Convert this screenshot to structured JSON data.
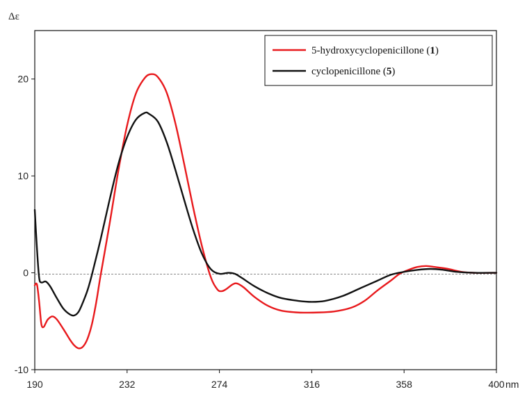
{
  "chart_data": {
    "type": "line",
    "ylabel": "Δε",
    "xunit": "nm",
    "xlim": [
      190,
      400
    ],
    "ylim": [
      -10,
      25
    ],
    "x_ticks": [
      190,
      232,
      274,
      316,
      358,
      400
    ],
    "x_tick_labels": [
      "190",
      "232",
      "274",
      "316",
      "358",
      "400"
    ],
    "y_ticks": [
      -10,
      0,
      10,
      20
    ],
    "y_tick_labels": [
      "-10",
      "0",
      "10",
      "20"
    ],
    "zero_line": true,
    "legend_position": "top-right",
    "series": [
      {
        "name": "5-hydroxycyclopenicillone (1)",
        "name_parts": [
          "5-hydroxycyclopenicillone (",
          "1",
          ")"
        ],
        "color": "#e8191c",
        "points": [
          [
            190,
            -1.3
          ],
          [
            191,
            -1.2
          ],
          [
            192,
            -3.0
          ],
          [
            193,
            -5.3
          ],
          [
            194,
            -5.6
          ],
          [
            195,
            -5.2
          ],
          [
            196,
            -4.8
          ],
          [
            198,
            -4.5
          ],
          [
            200,
            -4.8
          ],
          [
            203,
            -5.8
          ],
          [
            206,
            -6.9
          ],
          [
            208,
            -7.5
          ],
          [
            210,
            -7.8
          ],
          [
            212,
            -7.6
          ],
          [
            214,
            -6.8
          ],
          [
            216,
            -5.3
          ],
          [
            218,
            -3.0
          ],
          [
            220,
            -0.2
          ],
          [
            224,
            5.0
          ],
          [
            228,
            10.5
          ],
          [
            232,
            15.2
          ],
          [
            236,
            18.5
          ],
          [
            240,
            20.1
          ],
          [
            243,
            20.5
          ],
          [
            246,
            20.2
          ],
          [
            250,
            18.6
          ],
          [
            254,
            15.4
          ],
          [
            258,
            11.2
          ],
          [
            262,
            6.8
          ],
          [
            266,
            2.8
          ],
          [
            270,
            -0.4
          ],
          [
            273,
            -1.7
          ],
          [
            275,
            -1.9
          ],
          [
            277,
            -1.7
          ],
          [
            280,
            -1.2
          ],
          [
            282,
            -1.1
          ],
          [
            285,
            -1.5
          ],
          [
            290,
            -2.5
          ],
          [
            296,
            -3.4
          ],
          [
            302,
            -3.9
          ],
          [
            310,
            -4.1
          ],
          [
            318,
            -4.1
          ],
          [
            326,
            -4.0
          ],
          [
            334,
            -3.6
          ],
          [
            340,
            -2.9
          ],
          [
            346,
            -1.8
          ],
          [
            352,
            -0.8
          ],
          [
            356,
            -0.1
          ],
          [
            360,
            0.3
          ],
          [
            364,
            0.6
          ],
          [
            368,
            0.7
          ],
          [
            372,
            0.6
          ],
          [
            378,
            0.4
          ],
          [
            384,
            0.1
          ],
          [
            390,
            0.0
          ],
          [
            400,
            0.0
          ]
        ]
      },
      {
        "name": "cyclopenicillone (5)",
        "name_parts": [
          "cyclopenicillone (",
          "5",
          ")"
        ],
        "color": "#111111",
        "points": [
          [
            190,
            6.5
          ],
          [
            191,
            2.5
          ],
          [
            192,
            -0.5
          ],
          [
            193,
            -1.0
          ],
          [
            195,
            -0.9
          ],
          [
            197,
            -1.4
          ],
          [
            200,
            -2.6
          ],
          [
            203,
            -3.7
          ],
          [
            206,
            -4.3
          ],
          [
            208,
            -4.4
          ],
          [
            210,
            -4.0
          ],
          [
            212,
            -3.0
          ],
          [
            214,
            -1.8
          ],
          [
            216,
            -0.2
          ],
          [
            220,
            3.5
          ],
          [
            224,
            7.5
          ],
          [
            228,
            11.2
          ],
          [
            232,
            14.0
          ],
          [
            236,
            15.8
          ],
          [
            240,
            16.5
          ],
          [
            242,
            16.4
          ],
          [
            246,
            15.6
          ],
          [
            250,
            13.5
          ],
          [
            254,
            10.6
          ],
          [
            258,
            7.5
          ],
          [
            262,
            4.5
          ],
          [
            266,
            2.0
          ],
          [
            270,
            0.4
          ],
          [
            274,
            -0.1
          ],
          [
            278,
            0.0
          ],
          [
            281,
            -0.1
          ],
          [
            284,
            -0.5
          ],
          [
            290,
            -1.4
          ],
          [
            296,
            -2.1
          ],
          [
            302,
            -2.6
          ],
          [
            310,
            -2.9
          ],
          [
            316,
            -3.0
          ],
          [
            322,
            -2.9
          ],
          [
            330,
            -2.4
          ],
          [
            338,
            -1.6
          ],
          [
            346,
            -0.8
          ],
          [
            352,
            -0.2
          ],
          [
            358,
            0.1
          ],
          [
            364,
            0.3
          ],
          [
            370,
            0.4
          ],
          [
            376,
            0.3
          ],
          [
            382,
            0.1
          ],
          [
            390,
            0.0
          ],
          [
            400,
            0.0
          ]
        ]
      }
    ]
  }
}
